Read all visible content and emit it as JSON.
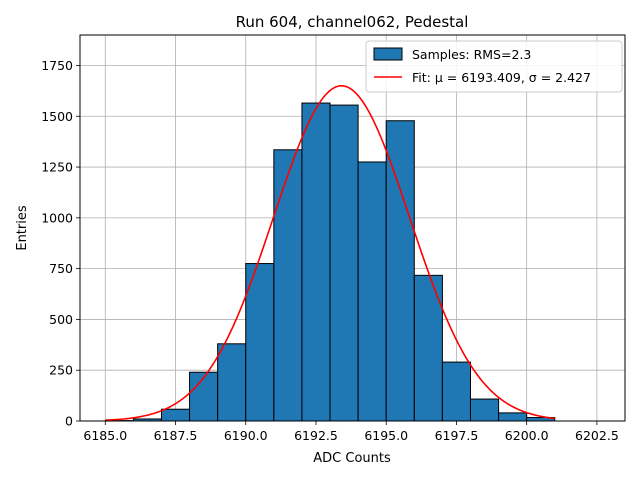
{
  "chart_data": {
    "type": "bar",
    "title": "Run 604, channel062, Pedestal",
    "xlabel": "ADC Counts",
    "ylabel": "Entries",
    "xlim": [
      6184.1,
      6203.5
    ],
    "ylim": [
      0,
      1900
    ],
    "xticks": [
      6185.0,
      6187.5,
      6190.0,
      6192.5,
      6195.0,
      6197.5,
      6200.0,
      6202.5
    ],
    "xtick_labels": [
      "6185.0",
      "6187.5",
      "6190.0",
      "6192.5",
      "6195.0",
      "6197.5",
      "6200.0",
      "6202.5"
    ],
    "yticks": [
      0,
      250,
      500,
      750,
      1000,
      1250,
      1500,
      1750
    ],
    "ytick_labels": [
      "0",
      "250",
      "500",
      "750",
      "1000",
      "1250",
      "1500",
      "1750"
    ],
    "grid": true,
    "legend_position": "top-right",
    "bin_edges": [
      6185,
      6186,
      6187,
      6188,
      6189,
      6190,
      6191,
      6192,
      6193,
      6194,
      6195,
      6196,
      6197,
      6198,
      6199,
      6200,
      6201
    ],
    "series": [
      {
        "name": "Samples: RMS=2.3",
        "kind": "histogram",
        "color": "#1f77b4",
        "edgecolor": "#000000",
        "values": [
          2,
          10,
          58,
          240,
          380,
          775,
          1335,
          1565,
          1555,
          1275,
          1478,
          717,
          290,
          108,
          40,
          17
        ]
      },
      {
        "name": "Fit: μ = 6193.409, σ = 2.427",
        "kind": "line",
        "color": "#ff0000",
        "mu": 6193.409,
        "sigma": 2.427,
        "amplitude": 1650,
        "x_range": [
          6185,
          6201
        ]
      }
    ]
  }
}
